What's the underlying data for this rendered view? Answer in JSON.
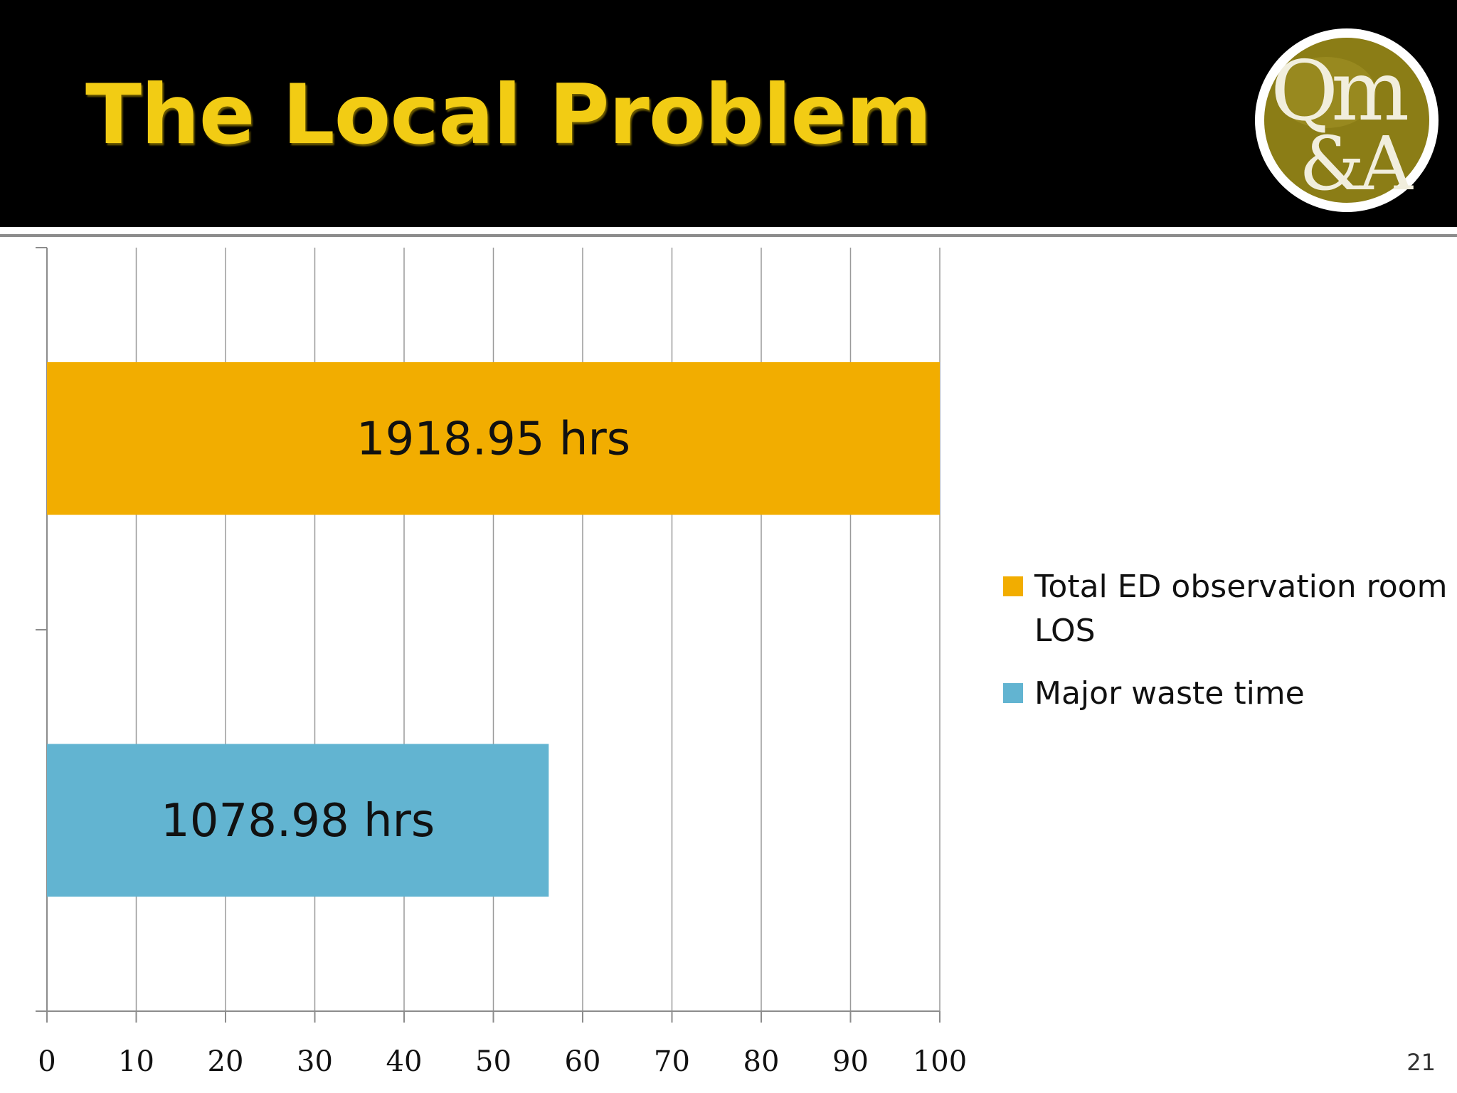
{
  "slide": {
    "title": "The Local Problem",
    "page_number": "21"
  },
  "logo": {
    "icon": "qma-logo-icon",
    "line1": "Qm",
    "line2": "&A",
    "colors": {
      "ring": "#ffffff",
      "disc": "#8b7d16",
      "text": "#f1eedd"
    }
  },
  "chart_data": {
    "type": "bar",
    "orientation": "horizontal",
    "x_ticks": [
      "0",
      "10",
      "20",
      "30",
      "40",
      "50",
      "60",
      "70",
      "80",
      "90",
      "100"
    ],
    "xlim": [
      0,
      100
    ],
    "grid": true,
    "series": [
      {
        "name": "Total ED observation room LOS",
        "value": 100,
        "label": "1918.95 hrs",
        "color": "#f2ad00"
      },
      {
        "name": "Major waste time",
        "value": 56.2,
        "label": "1078.98 hrs",
        "color": "#62b4d1"
      }
    ],
    "legend": {
      "position": "right",
      "items": [
        {
          "label": "Total ED observation room LOS",
          "color": "#f2ad00"
        },
        {
          "label": "Major waste time",
          "color": "#62b4d1"
        }
      ]
    }
  }
}
